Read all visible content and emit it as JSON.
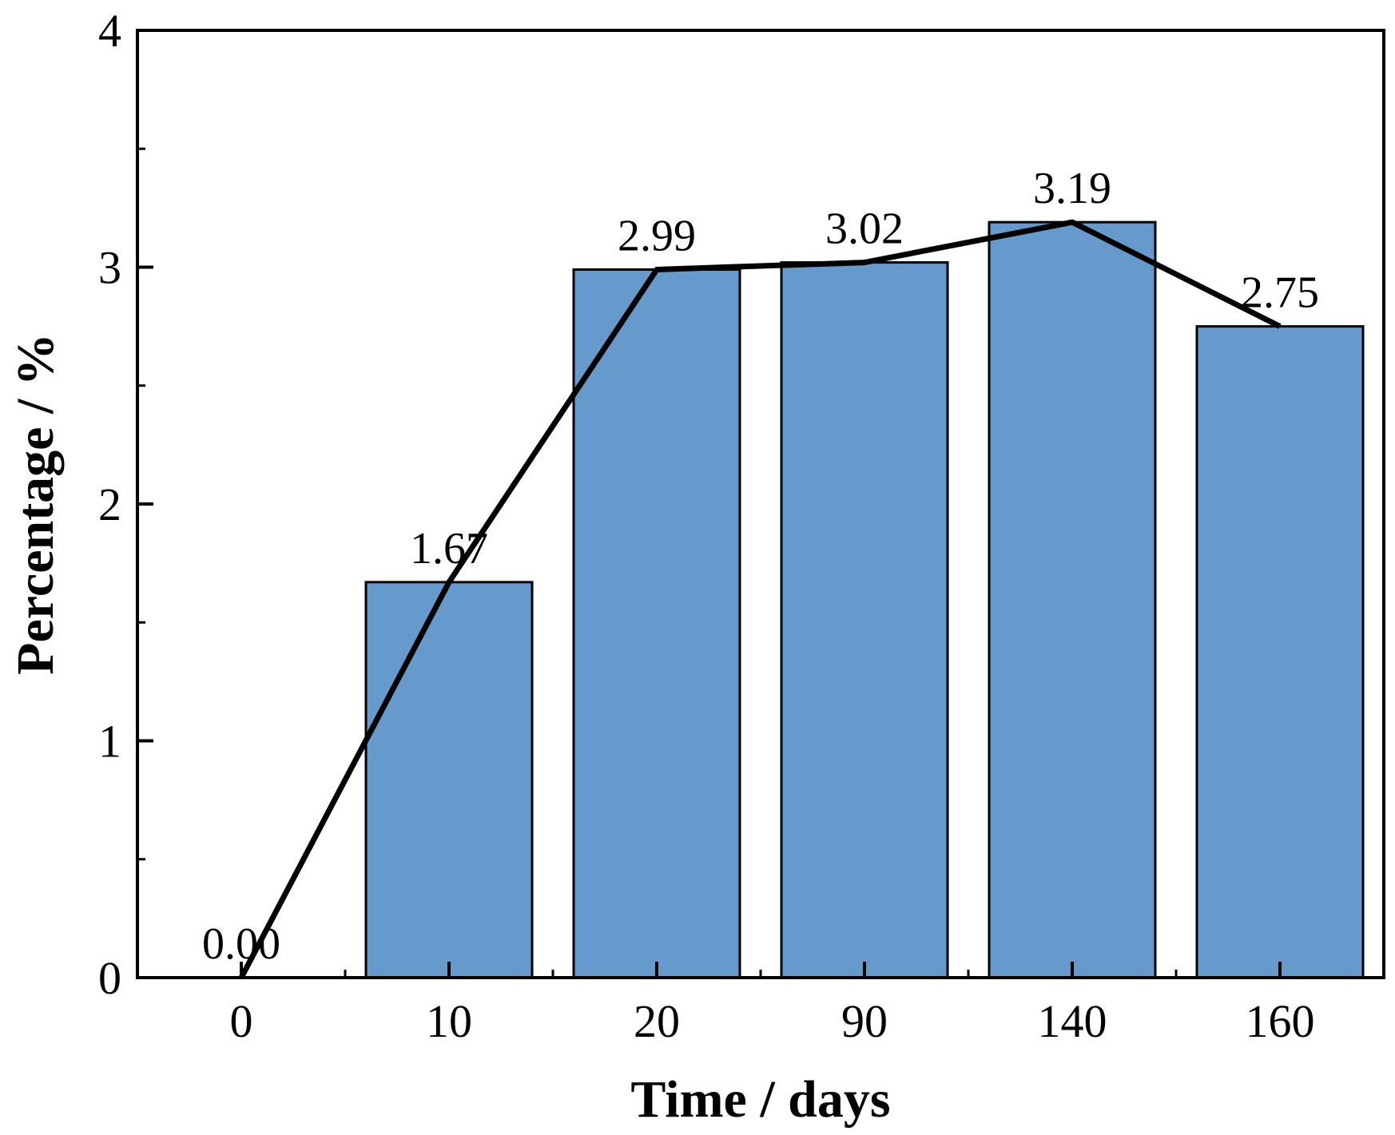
{
  "chart_data": {
    "type": "bar",
    "categories": [
      "0",
      "10",
      "20",
      "90",
      "140",
      "160"
    ],
    "values": [
      0.0,
      1.67,
      2.99,
      3.02,
      3.19,
      2.75
    ],
    "data_labels": [
      "0.00",
      "1.67",
      "2.99",
      "3.02",
      "3.19",
      "2.75"
    ],
    "line_overlay": true,
    "xlabel": "Time / days",
    "ylabel": "Percentage / %",
    "ylim": [
      0,
      4
    ],
    "yticks": [
      "0",
      "1",
      "2",
      "3",
      "4"
    ],
    "grid": false,
    "bar_color": "#6699cc",
    "line_color": "#000000"
  }
}
